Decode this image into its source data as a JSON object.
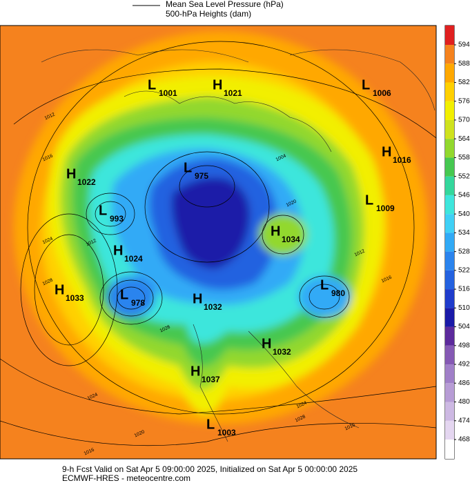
{
  "header": {
    "legend": [
      "Mean Sea Level Pressure (hPa)",
      "500-hPa Heights (dam)"
    ]
  },
  "colorbar": {
    "ticks": [
      594,
      588,
      582,
      576,
      570,
      564,
      558,
      552,
      546,
      540,
      534,
      528,
      522,
      516,
      510,
      504,
      498,
      492,
      486,
      480,
      474,
      468
    ],
    "colors": [
      "#ffffff",
      "#e4d6f0",
      "#cdb9e3",
      "#b79cd5",
      "#a07fc8",
      "#8559b4",
      "#5c2a9c",
      "#1a1aa8",
      "#1f3ccc",
      "#2462e0",
      "#2b84ee",
      "#31aaf6",
      "#3fd0f6",
      "#3ee6dc",
      "#34d79c",
      "#46c850",
      "#92d82e",
      "#cfe21e",
      "#f2ef00",
      "#ffd000",
      "#ffa800",
      "#f5821e",
      "#e02020"
    ]
  },
  "centers": [
    {
      "letter": "L",
      "value": "1001"
    },
    {
      "letter": "H",
      "value": "1021"
    },
    {
      "letter": "L",
      "value": "1006"
    },
    {
      "letter": "H",
      "value": "1016"
    },
    {
      "letter": "H",
      "value": "1022"
    },
    {
      "letter": "L",
      "value": "975"
    },
    {
      "letter": "L",
      "value": "1009"
    },
    {
      "letter": "L",
      "value": "993"
    },
    {
      "letter": "H",
      "value": "1034"
    },
    {
      "letter": "H",
      "value": "1024"
    },
    {
      "letter": "H",
      "value": "1033"
    },
    {
      "letter": "L",
      "value": "978"
    },
    {
      "letter": "H",
      "value": "1032"
    },
    {
      "letter": "L",
      "value": "980"
    },
    {
      "letter": "H",
      "value": "1032"
    },
    {
      "letter": "H",
      "value": "1037"
    },
    {
      "letter": "L",
      "value": "1003"
    }
  ],
  "contour_labels": [
    "1012",
    "1016",
    "1024",
    "1012",
    "1028",
    "1004",
    "1020",
    "1028",
    "1012",
    "1016",
    "1024",
    "1020",
    "1016",
    "1024",
    "1028",
    "1016"
  ],
  "footer": [
    "9-h Fcst Valid on Sat Apr  5 09:00:00 2025, Initialized on Sat Apr  5 00:00:00 2025",
    "ECMWF-HRES  - meteocentre.com"
  ]
}
